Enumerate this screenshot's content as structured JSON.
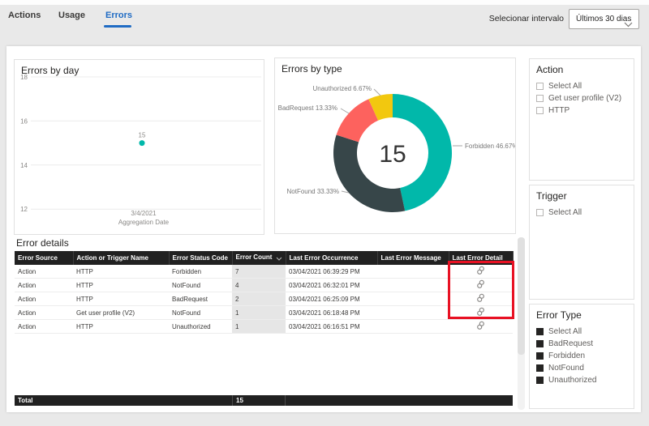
{
  "tabs": {
    "items": [
      {
        "label": "Actions",
        "active": false
      },
      {
        "label": "Usage",
        "active": false
      },
      {
        "label": "Errors",
        "active": true
      }
    ]
  },
  "interval_picker": {
    "label": "Selecionar intervalo",
    "value": "Últimos 30 dias",
    "chevron_icon": "chevron-down-icon"
  },
  "colors": {
    "accent_blue": "#1f6bc4",
    "teal": "#01b8aa",
    "dark_slate": "#374649",
    "coral_red": "#fd625e",
    "yellow": "#f2c80f",
    "highlight_red": "#e81123",
    "table_header_bg": "#212121"
  },
  "chart_data": [
    {
      "type": "scatter",
      "title": "Errors by day",
      "xlabel": "Aggregation Date",
      "ylabel": "",
      "x": [
        "3/4/2021"
      ],
      "series": [
        {
          "name": "Errors",
          "values": [
            15
          ]
        }
      ],
      "point_label": "15",
      "y_ticks": [
        18,
        16,
        14,
        12
      ],
      "ylim": [
        12,
        18
      ],
      "grid": true,
      "point_color": "#01b8aa"
    },
    {
      "type": "pie",
      "title": "Errors by type",
      "center_label": "15",
      "total": 15,
      "legend_position": "callout-labels",
      "slices": [
        {
          "name": "Forbidden",
          "count": 7,
          "pct": 46.67,
          "label": "Forbidden 46.67%",
          "color": "#01b8aa"
        },
        {
          "name": "NotFound",
          "count": 5,
          "pct": 33.33,
          "label": "NotFound 33.33%",
          "color": "#374649"
        },
        {
          "name": "BadRequest",
          "count": 2,
          "pct": 13.33,
          "label": "BadRequest 13.33%",
          "color": "#fd625e"
        },
        {
          "name": "Unauthorized",
          "count": 1,
          "pct": 6.67,
          "label": "Unauthorized 6.67%",
          "color": "#f2c80f"
        }
      ]
    }
  ],
  "slicers": [
    {
      "title": "Action",
      "items": [
        {
          "label": "Select All",
          "checked": false
        },
        {
          "label": "Get user profile (V2)",
          "checked": false
        },
        {
          "label": "HTTP",
          "checked": false
        }
      ]
    },
    {
      "title": "Trigger",
      "items": [
        {
          "label": "Select All",
          "checked": false
        }
      ]
    },
    {
      "title": "Error Type",
      "items": [
        {
          "label": "Select All",
          "checked": true
        },
        {
          "label": "BadRequest",
          "checked": true
        },
        {
          "label": "Forbidden",
          "checked": true
        },
        {
          "label": "NotFound",
          "checked": true
        },
        {
          "label": "Unauthorized",
          "checked": true
        }
      ]
    }
  ],
  "error_details": {
    "title": "Error details",
    "columns": [
      "Error Source",
      "Action or Trigger Name",
      "Error Status Code",
      "Error Count",
      "Last Error Occurrence",
      "Last Error Message",
      "Last Error Detail"
    ],
    "sorted_column": "Error Count",
    "sort_icon": "chevron-down-icon",
    "detail_icon": "link-icon",
    "rows": [
      {
        "source": "Action",
        "name": "HTTP",
        "code": "Forbidden",
        "count": "7",
        "occurrence": "03/04/2021 06:39:29 PM",
        "message": ""
      },
      {
        "source": "Action",
        "name": "HTTP",
        "code": "NotFound",
        "count": "4",
        "occurrence": "03/04/2021 06:32:01 PM",
        "message": ""
      },
      {
        "source": "Action",
        "name": "HTTP",
        "code": "BadRequest",
        "count": "2",
        "occurrence": "03/04/2021 06:25:09 PM",
        "message": ""
      },
      {
        "source": "Action",
        "name": "Get user profile (V2)",
        "code": "NotFound",
        "count": "1",
        "occurrence": "03/04/2021 06:18:48 PM",
        "message": ""
      },
      {
        "source": "Action",
        "name": "HTTP",
        "code": "Unauthorized",
        "count": "1",
        "occurrence": "03/04/2021 06:16:51 PM",
        "message": ""
      }
    ],
    "total_label": "Total",
    "total_count": "15"
  }
}
